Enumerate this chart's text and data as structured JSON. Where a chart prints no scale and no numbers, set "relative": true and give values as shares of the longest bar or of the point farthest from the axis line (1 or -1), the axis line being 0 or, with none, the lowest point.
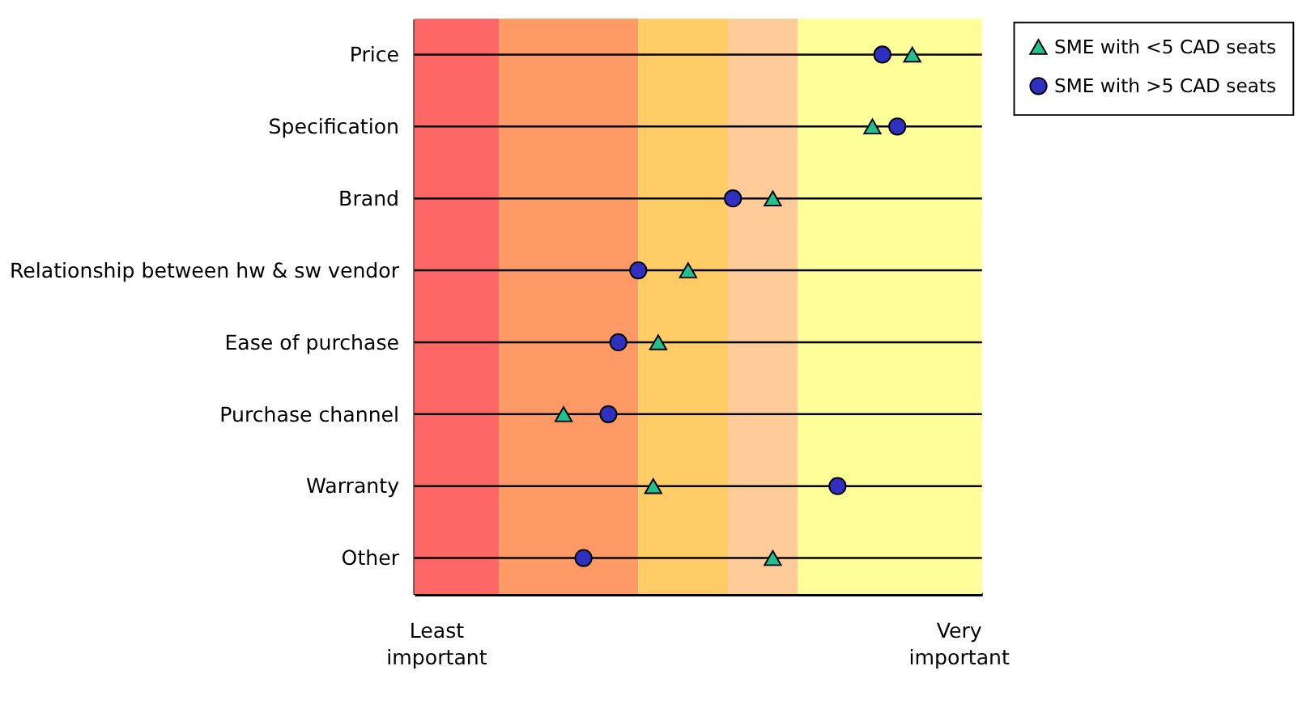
{
  "chart_data": {
    "type": "scatter",
    "relative": true,
    "categories": [
      "Price",
      "Specification",
      "Brand",
      "Relationship between hw & sw vendor",
      "Ease of purchase",
      "Purchase channel",
      "Warranty",
      "Other"
    ],
    "series": [
      {
        "name": "SME with <5 CAD seats",
        "color": "#20c090",
        "marker": "triangle",
        "values": [
          1,
          0.92,
          0.72,
          0.55,
          0.49,
          0.3,
          0.48,
          0.72
        ]
      },
      {
        "name": "SME with >5 CAD seats",
        "color": "#3030c0",
        "marker": "circle",
        "values": [
          0.94,
          0.97,
          0.64,
          0.45,
          0.41,
          0.39,
          0.85,
          0.34
        ]
      }
    ],
    "bands": [
      {
        "axis": "x",
        "from": 0,
        "to": 0.17,
        "color": "#ff6666"
      },
      {
        "axis": "x",
        "from": 0.17,
        "to": 0.45,
        "color": "#ff9966"
      },
      {
        "axis": "x",
        "from": 0.45,
        "to": 0.63,
        "color": "#ffcc66"
      },
      {
        "axis": "x",
        "from": 0.63,
        "to": 0.77,
        "color": "#ffcc99"
      },
      {
        "axis": "x",
        "from": 0.77,
        "to": 1.14,
        "color": "#ffff99"
      }
    ],
    "annotations": [
      "Least important",
      "Very important"
    ],
    "orientation": "horizontal",
    "grid": "y",
    "legend": "top right"
  }
}
